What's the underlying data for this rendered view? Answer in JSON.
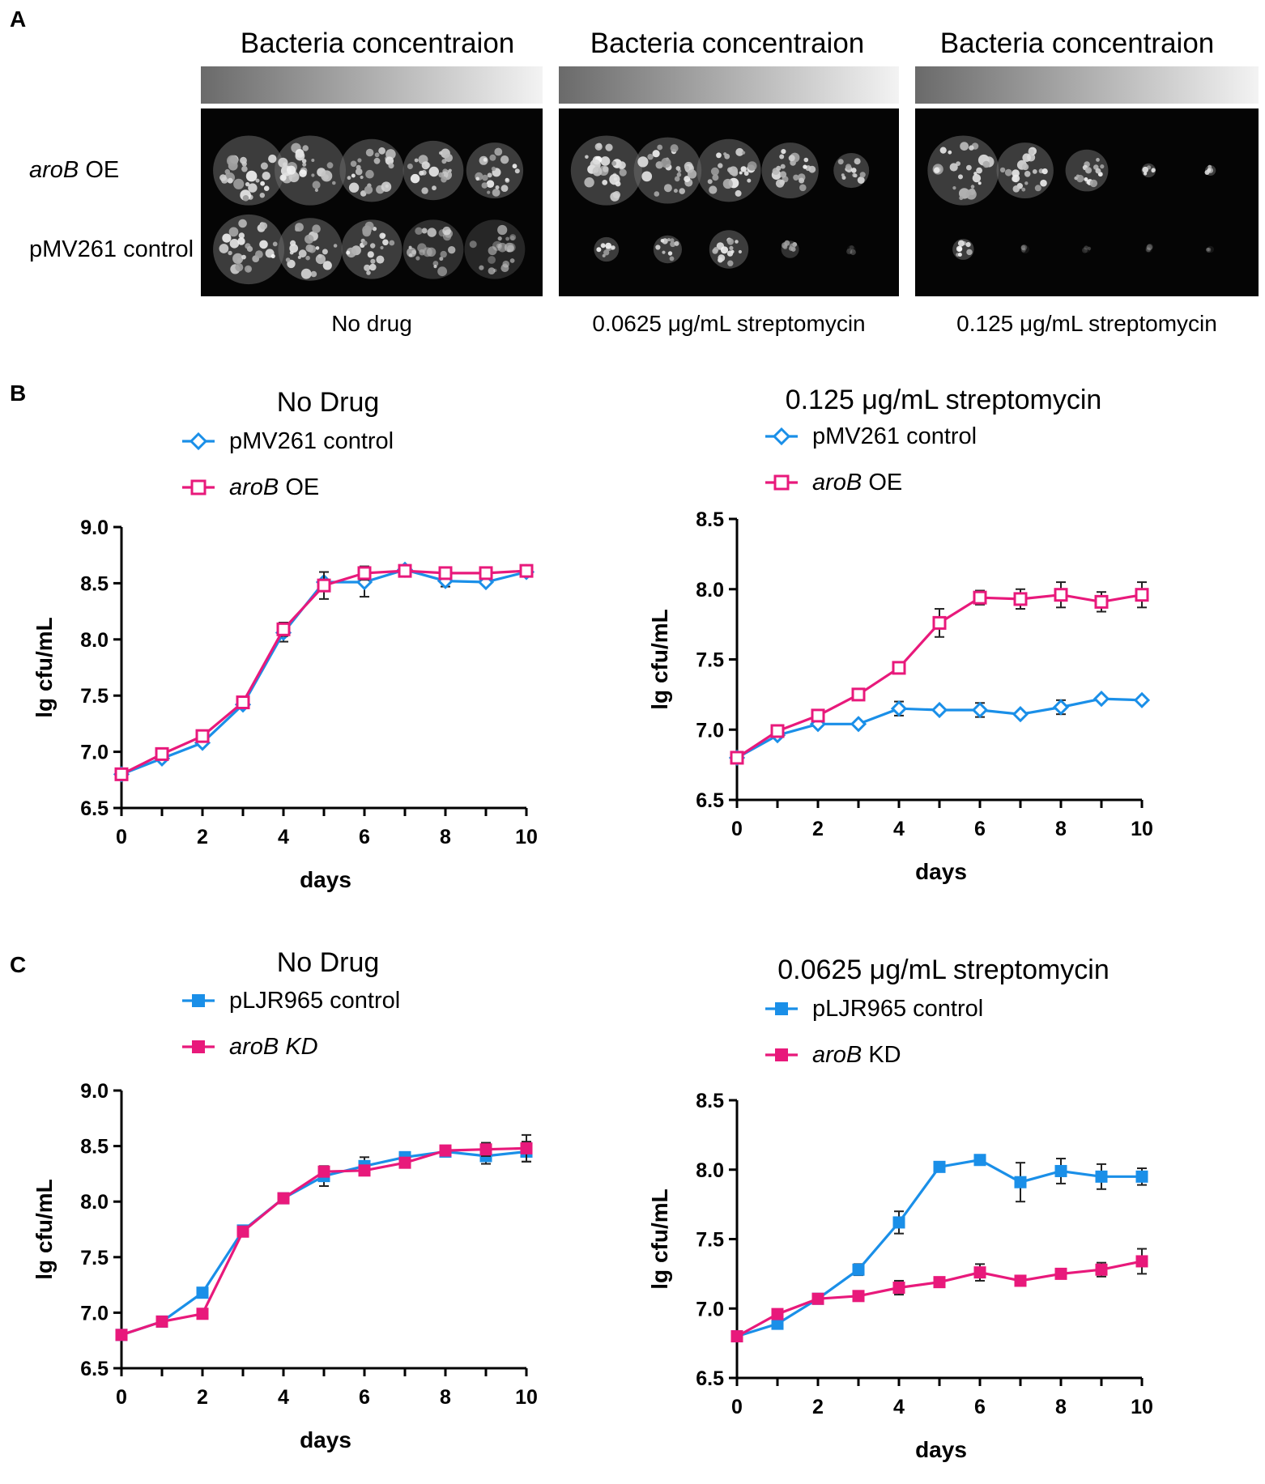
{
  "panels": {
    "a": "A",
    "b": "B",
    "c": "C"
  },
  "panel_a": {
    "concentration_label": "Bacteria concentraion",
    "row_labels": [
      {
        "italic": "aroB",
        "rest": " OE"
      },
      {
        "italic": "",
        "rest": "pMV261 control"
      }
    ],
    "plates": [
      {
        "caption": "No drug",
        "top_sizes": [
          1,
          1,
          0.9,
          0.85,
          0.8
        ],
        "bottom_sizes": [
          1,
          0.9,
          0.85,
          0.85,
          0.85
        ],
        "bottom_intensity": [
          1,
          1,
          1,
          0.75,
          0.6
        ]
      },
      {
        "caption": "0.0625 μg/mL streptomycin",
        "top_sizes": [
          1,
          0.95,
          0.9,
          0.8,
          0.5
        ],
        "bottom_sizes": [
          0.35,
          0.4,
          0.55,
          0.25,
          0.12
        ],
        "bottom_intensity": [
          1,
          1,
          1,
          0.8,
          0.25
        ]
      },
      {
        "caption": "0.125 μg/mL streptomycin",
        "top_sizes": [
          1,
          0.8,
          0.6,
          0.2,
          0.15
        ],
        "bottom_sizes": [
          0.3,
          0.12,
          0.1,
          0.1,
          0.1
        ],
        "bottom_intensity": [
          1,
          0.3,
          0.25,
          0.25,
          0.3
        ]
      }
    ]
  },
  "colors": {
    "blue": "#1a8fe8",
    "pink": "#e8197b"
  },
  "chart_data": [
    {
      "type": "line",
      "panel": "B",
      "title": "No Drug",
      "xlabel": "days",
      "ylabel": "lg cfu/mL",
      "xlim": [
        0,
        10
      ],
      "ylim": [
        6.5,
        9.0
      ],
      "xticks": [
        "0",
        "2",
        "4",
        "6",
        "8",
        "10"
      ],
      "yticks": [
        "6.5",
        "7.0",
        "7.5",
        "8.0",
        "8.5",
        "9.0"
      ],
      "x": [
        0,
        1,
        2,
        3,
        4,
        5,
        6,
        7,
        8,
        9,
        10
      ],
      "series": [
        {
          "name": "pMV261 control",
          "name_italic": "",
          "name_rest": "pMV261 control",
          "marker": "diamond-open",
          "color": "#1a8fe8",
          "values": [
            6.8,
            6.94,
            7.08,
            7.42,
            8.06,
            8.51,
            8.51,
            8.62,
            8.52,
            8.51,
            8.6
          ],
          "errors": [
            0,
            0,
            0,
            0,
            0.08,
            0,
            0.13,
            0,
            0.05,
            0,
            0
          ]
        },
        {
          "name": "aroB OE",
          "name_italic": "aroB",
          "name_rest": " OE",
          "marker": "square-open",
          "color": "#e8197b",
          "values": [
            6.8,
            6.98,
            7.14,
            7.44,
            8.09,
            8.48,
            8.59,
            8.61,
            8.59,
            8.59,
            8.61
          ],
          "errors": [
            0,
            0,
            0,
            0,
            0.06,
            0.12,
            0.06,
            0.04,
            0,
            0,
            0
          ]
        }
      ]
    },
    {
      "type": "line",
      "panel": "B",
      "title": "0.125 μg/mL streptomycin",
      "xlabel": "days",
      "ylabel": "lg cfu/mL",
      "xlim": [
        0,
        10
      ],
      "ylim": [
        6.5,
        8.5
      ],
      "xticks": [
        "0",
        "2",
        "4",
        "6",
        "8",
        "10"
      ],
      "yticks": [
        "6.5",
        "7.0",
        "7.5",
        "8.0",
        "8.5"
      ],
      "x": [
        0,
        1,
        2,
        3,
        4,
        5,
        6,
        7,
        8,
        9,
        10
      ],
      "series": [
        {
          "name": "pMV261 control",
          "name_italic": "",
          "name_rest": "pMV261 control",
          "marker": "diamond-open",
          "color": "#1a8fe8",
          "values": [
            6.8,
            6.96,
            7.04,
            7.04,
            7.15,
            7.14,
            7.14,
            7.11,
            7.16,
            7.22,
            7.21
          ],
          "errors": [
            0,
            0,
            0,
            0,
            0.05,
            0,
            0.05,
            0,
            0.05,
            0,
            0
          ]
        },
        {
          "name": "aroB OE",
          "name_italic": "aroB",
          "name_rest": " OE",
          "marker": "square-open",
          "color": "#e8197b",
          "values": [
            6.8,
            6.99,
            7.1,
            7.25,
            7.44,
            7.76,
            7.94,
            7.93,
            7.96,
            7.91,
            7.96
          ],
          "errors": [
            0,
            0,
            0,
            0,
            0,
            0.1,
            0.05,
            0.07,
            0.09,
            0.07,
            0.09
          ]
        }
      ]
    },
    {
      "type": "line",
      "panel": "C",
      "title": "No Drug",
      "xlabel": "days",
      "ylabel": "lg cfu/mL",
      "xlim": [
        0,
        10
      ],
      "ylim": [
        6.5,
        9.0
      ],
      "xticks": [
        "0",
        "2",
        "4",
        "6",
        "8",
        "10"
      ],
      "yticks": [
        "6.5",
        "7.0",
        "7.5",
        "8.0",
        "8.5",
        "9.0"
      ],
      "x": [
        0,
        1,
        2,
        3,
        4,
        5,
        6,
        7,
        8,
        9,
        10
      ],
      "series": [
        {
          "name": "pLJR965 control",
          "name_italic": "",
          "name_rest": "pLJR965 control",
          "marker": "square-filled",
          "color": "#1a8fe8",
          "values": [
            6.8,
            6.92,
            7.18,
            7.74,
            8.03,
            8.23,
            8.32,
            8.4,
            8.45,
            8.41,
            8.45
          ],
          "errors": [
            0,
            0,
            0,
            0,
            0,
            0.09,
            0.08,
            0,
            0,
            0.07,
            0.09
          ]
        },
        {
          "name": "aroB KD",
          "name_italic": "aroB KD",
          "name_rest": "",
          "marker": "square-filled",
          "color": "#e8197b",
          "values": [
            6.8,
            6.92,
            6.99,
            7.73,
            8.03,
            8.27,
            8.28,
            8.35,
            8.46,
            8.47,
            8.48
          ],
          "errors": [
            0,
            0,
            0,
            0,
            0,
            0.04,
            0.04,
            0,
            0,
            0.06,
            0.12
          ]
        }
      ]
    },
    {
      "type": "line",
      "panel": "C",
      "title": "0.0625 μg/mL streptomycin",
      "xlabel": "days",
      "ylabel": "lg cfu/mL",
      "xlim": [
        0,
        10
      ],
      "ylim": [
        6.5,
        8.5
      ],
      "xticks": [
        "0",
        "2",
        "4",
        "6",
        "8",
        "10"
      ],
      "yticks": [
        "6.5",
        "7.0",
        "7.5",
        "8.0",
        "8.5"
      ],
      "x": [
        0,
        1,
        2,
        3,
        4,
        5,
        6,
        7,
        8,
        9,
        10
      ],
      "series": [
        {
          "name": "pLJR965 control",
          "name_italic": "",
          "name_rest": "pLJR965 control",
          "marker": "square-filled",
          "color": "#1a8fe8",
          "values": [
            6.8,
            6.89,
            7.07,
            7.28,
            7.62,
            8.02,
            8.07,
            7.91,
            7.99,
            7.95,
            7.95
          ],
          "errors": [
            0,
            0,
            0,
            0.04,
            0.08,
            0,
            0,
            0.14,
            0.09,
            0.09,
            0.06
          ]
        },
        {
          "name": "aroB KD",
          "name_italic": "aroB",
          "name_rest": " KD",
          "marker": "square-filled",
          "color": "#e8197b",
          "values": [
            6.8,
            6.96,
            7.07,
            7.09,
            7.15,
            7.19,
            7.26,
            7.2,
            7.25,
            7.28,
            7.34
          ],
          "errors": [
            0,
            0,
            0,
            0,
            0.05,
            0,
            0.06,
            0,
            0,
            0.05,
            0.09
          ]
        }
      ]
    }
  ]
}
